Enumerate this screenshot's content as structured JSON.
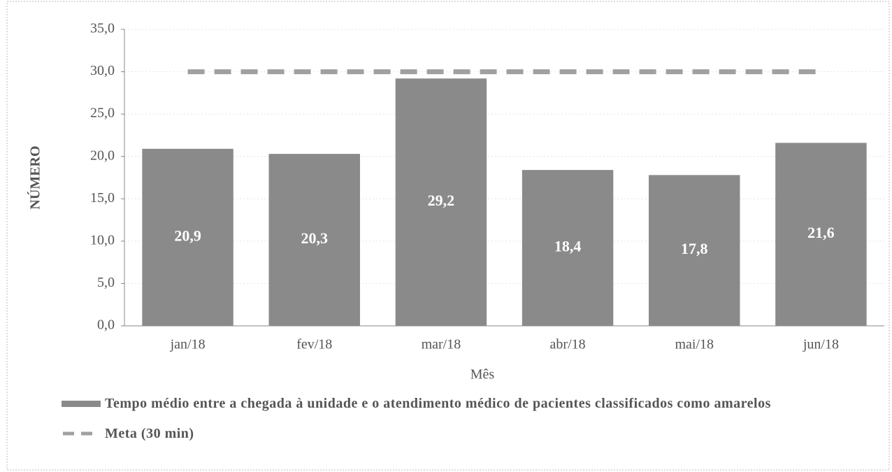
{
  "chart_data": {
    "type": "bar",
    "x_label": "Mês",
    "y_label": "NÚMERO",
    "categories": [
      "jan/18",
      "fev/18",
      "mar/18",
      "abr/18",
      "mai/18",
      "jun/18"
    ],
    "series": [
      {
        "name": "Tempo médio entre a chegada à unidade e o atendimento médico de pacientes classificados como amarelos",
        "type": "bar",
        "color": "#8a8a8a",
        "values": [
          20.9,
          20.3,
          29.2,
          18.4,
          17.8,
          21.6
        ],
        "value_labels": [
          "20,9",
          "20,3",
          "29,2",
          "18,4",
          "17,8",
          "21,6"
        ]
      },
      {
        "name": "Meta (30 min)",
        "type": "line",
        "dashed": true,
        "color": "#a0a0a0",
        "values": [
          30,
          30,
          30,
          30,
          30,
          30
        ]
      }
    ],
    "ylim": [
      0,
      35
    ],
    "yticks": [
      {
        "value": 0,
        "label": "0,0"
      },
      {
        "value": 5,
        "label": "5,0"
      },
      {
        "value": 10,
        "label": "10,0"
      },
      {
        "value": 15,
        "label": "15,0"
      },
      {
        "value": 20,
        "label": "20,0"
      },
      {
        "value": 25,
        "label": "25,0"
      },
      {
        "value": 30,
        "label": "30,0"
      },
      {
        "value": 35,
        "label": "35,0"
      }
    ],
    "grid": true
  }
}
